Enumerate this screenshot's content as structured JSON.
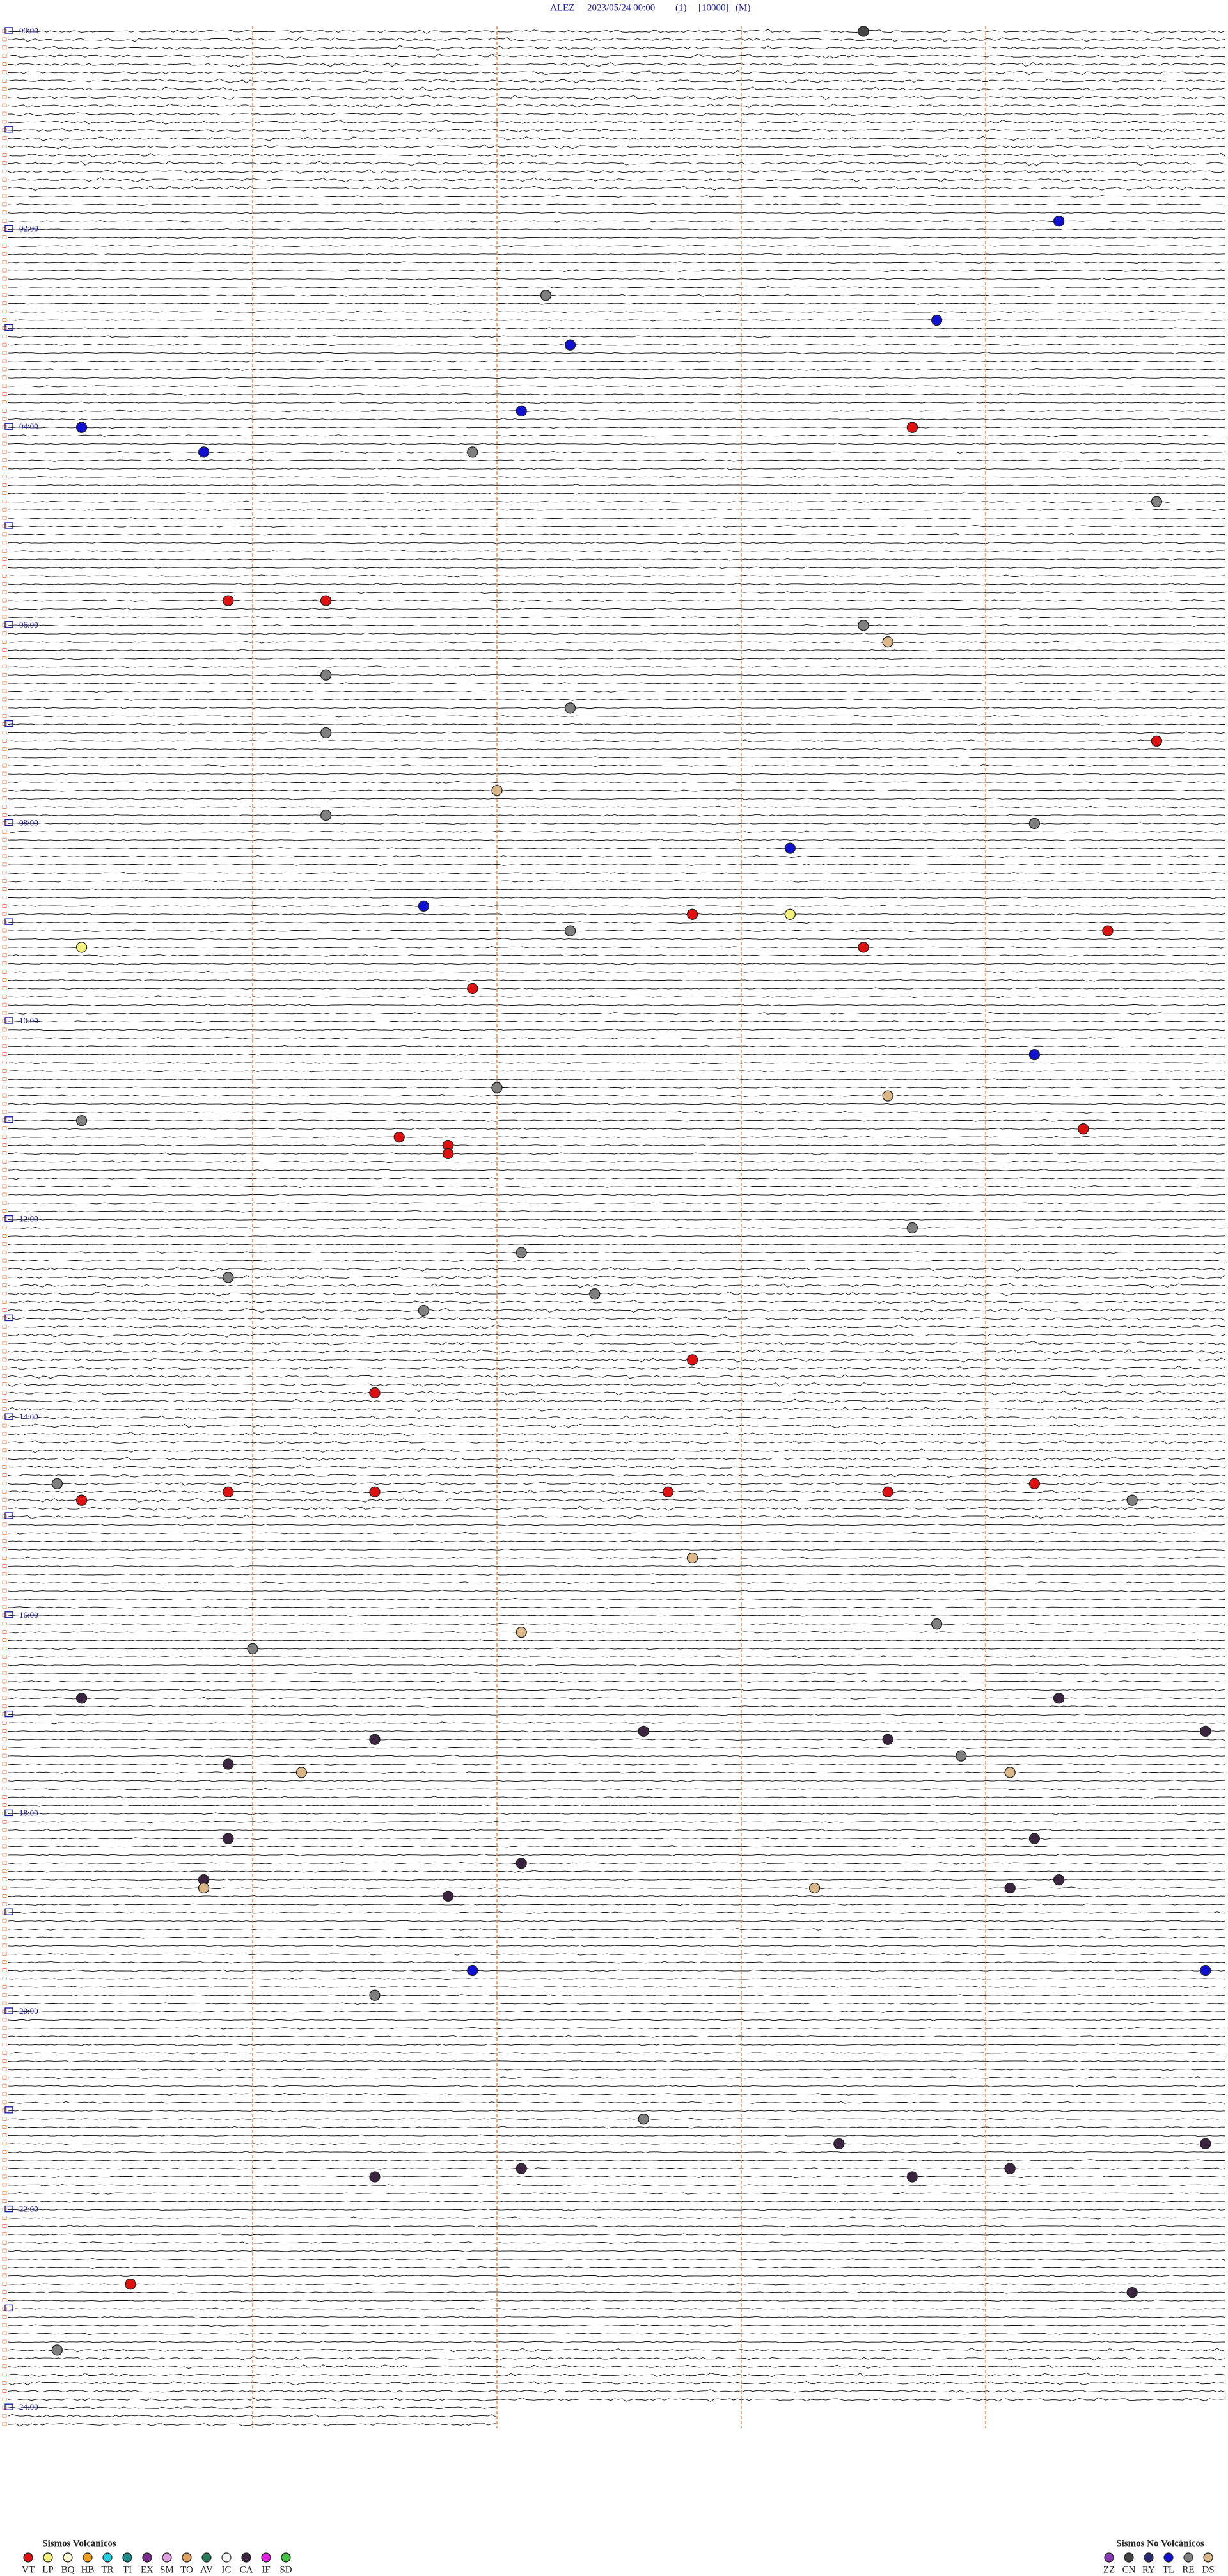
{
  "header": {
    "station": "ALEZ",
    "datetime": "2023/05/24 00:00",
    "channel": "(1)",
    "gain": "[10000]",
    "mode": "(M)"
  },
  "hours": [
    "00:00",
    "02:00",
    "04:00",
    "06:00",
    "08:00",
    "10:00",
    "12:00",
    "14:00",
    "16:00",
    "18:00",
    "20:00",
    "22:00",
    "24:00"
  ],
  "legend": {
    "volcanic": {
      "title": "Sismos Volcánicos",
      "items": [
        {
          "code": "VT",
          "color": "#e01010"
        },
        {
          "code": "LP",
          "color": "#f5f07a"
        },
        {
          "code": "BQ",
          "color": "#fffbd0"
        },
        {
          "code": "HB",
          "color": "#f0a020"
        },
        {
          "code": "TR",
          "color": "#20d0e0"
        },
        {
          "code": "TI",
          "color": "#208a8a"
        },
        {
          "code": "EX",
          "color": "#7a2a8a"
        },
        {
          "code": "SM",
          "color": "#e0a0e0"
        },
        {
          "code": "TO",
          "color": "#e0a060"
        },
        {
          "code": "AV",
          "color": "#2a7a5a"
        },
        {
          "code": "IC",
          "color": "#f4f4f4"
        },
        {
          "code": "CA",
          "color": "#3a2440"
        },
        {
          "code": "IF",
          "color": "#e020e0"
        },
        {
          "code": "SD",
          "color": "#40c040"
        }
      ]
    },
    "non_volcanic": {
      "title": "Sismos No Volcánicos",
      "items": [
        {
          "code": "ZZ",
          "color": "#8a3ab0"
        },
        {
          "code": "CN",
          "color": "#444444"
        },
        {
          "code": "RY",
          "color": "#2a2a70"
        },
        {
          "code": "TL",
          "color": "#1010d0"
        },
        {
          "code": "RE",
          "color": "#808080"
        },
        {
          "code": "DS",
          "color": "#dcb888"
        }
      ]
    }
  },
  "events": [
    [
      "CN",
      3.5
    ],
    [
      "TL",
      119.3
    ],
    [
      "RE",
      162.2
    ],
    [
      "TL",
      178.8
    ],
    [
      "TL",
      192.3
    ],
    [
      "TL",
      232.1
    ],
    [
      "TL",
      240.3
    ],
    [
      "VT",
      243.7
    ],
    [
      "TL",
      255.8
    ],
    [
      "RE",
      256.9
    ],
    [
      "RE",
      289.7
    ],
    [
      "VT",
      345.9
    ],
    [
      "VT",
      346.3
    ],
    [
      "RE",
      363.5
    ],
    [
      "DS",
      373.6
    ],
    [
      "RE",
      391.3
    ],
    [
      "RE",
      412.3
    ],
    [
      "RE",
      426.3
    ],
    [
      "VT",
      434.7
    ],
    [
      "DS",
      462.0
    ],
    [
      "RE",
      476.3
    ],
    [
      "RE",
      484.2
    ],
    [
      "TL",
      498.2
    ],
    [
      "TL",
      531.7
    ],
    [
      "VT",
      537.8
    ],
    [
      "LP",
      538.2
    ],
    [
      "RE",
      547.3
    ],
    [
      "VT",
      549.5
    ],
    [
      "LP",
      555.3
    ],
    [
      "VT",
      558.5
    ],
    [
      "VT",
      581.9
    ],
    [
      "TL",
      624.2
    ],
    [
      "RE",
      642.0
    ],
    [
      "DS",
      648.6
    ],
    [
      "RE",
      660.3
    ],
    [
      "VT",
      669.4
    ],
    [
      "VT",
      671.6
    ],
    [
      "VT",
      676.8
    ],
    [
      "VT",
      681.8
    ],
    [
      "RE",
      728.7
    ],
    [
      "RE",
      742.1
    ],
    [
      "RE",
      755.9
    ],
    [
      "RE",
      767.4
    ],
    [
      "RE",
      776.7
    ],
    [
      "VT",
      807.8
    ],
    [
      "VT",
      826.5
    ],
    [
      "RE",
      880.2
    ],
    [
      "VT",
      884.2
    ],
    [
      "VT",
      885.9
    ],
    [
      "VT",
      886.5
    ],
    [
      "VT",
      887.7
    ],
    [
      "VT",
      888.6
    ],
    [
      "VT",
      890.3
    ],
    [
      "RE",
      894.6
    ],
    [
      "DS",
      927.8
    ],
    [
      "RE",
      968.8
    ],
    [
      "DS",
      972.1
    ],
    [
      "RE",
      981.0
    ],
    [
      "CA",
      1010.3
    ],
    [
      "CA",
      1014.3
    ],
    [
      "CA",
      1032.6
    ],
    [
      "CA",
      1034.9
    ],
    [
      "CA",
      1036.5
    ],
    [
      "CA",
      1038.6
    ],
    [
      "RE",
      1048.9
    ],
    [
      "CA",
      1050.9
    ],
    [
      "DS",
      1056.2
    ],
    [
      "DS",
      1059.1
    ],
    [
      "CA",
      1095.9
    ],
    [
      "CA",
      1099.2
    ],
    [
      "CA",
      1112.1
    ],
    [
      "CA",
      1120.8
    ],
    [
      "CA",
      1124.3
    ],
    [
      "DS",
      1125.8
    ],
    [
      "DS",
      1128.3
    ],
    [
      "CA",
      1129.1
    ],
    [
      "CA",
      1131.8
    ],
    [
      "TL",
      1176.9
    ],
    [
      "TL",
      1179.9
    ],
    [
      "RE",
      1191.5
    ],
    [
      "RE",
      1267.6
    ],
    [
      "CA",
      1283.4
    ],
    [
      "CA",
      1284.9
    ],
    [
      "CA",
      1297.1
    ],
    [
      "CA",
      1299.1
    ],
    [
      "CA",
      1301.5
    ],
    [
      "CA",
      1303.7
    ],
    [
      "VT",
      1365.5
    ],
    [
      "CA",
      1374.6
    ],
    [
      "RE",
      1405.2
    ]
  ]
}
